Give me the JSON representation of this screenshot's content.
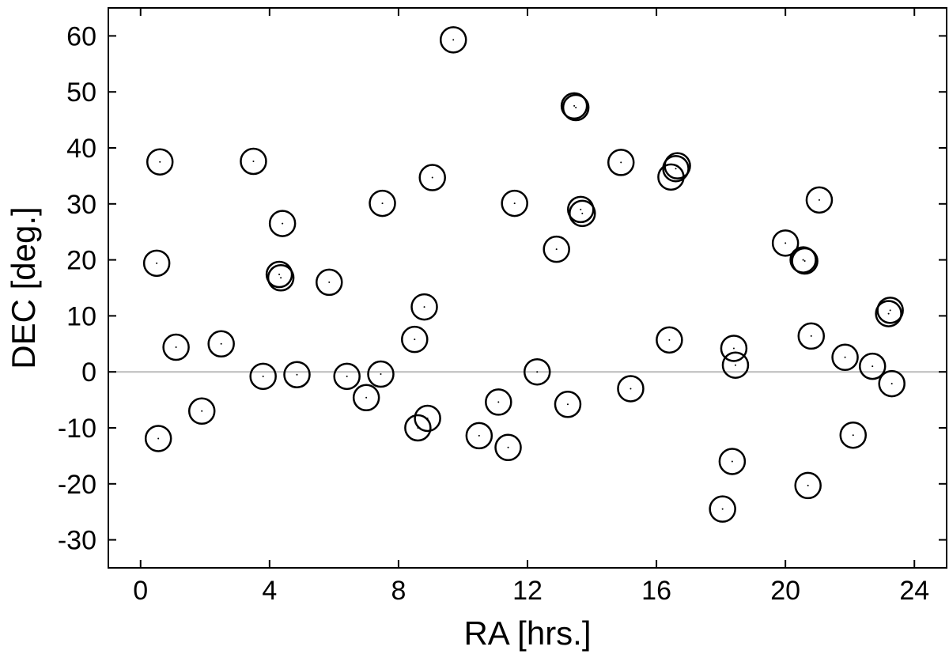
{
  "chart_data": {
    "type": "scatter",
    "xlabel": "RA [hrs.]",
    "ylabel": "DEC [deg.]",
    "xlim": [
      -1,
      25
    ],
    "ylim": [
      -35,
      65
    ],
    "xticks": [
      0,
      4,
      8,
      12,
      16,
      20,
      24
    ],
    "yticks": [
      -30,
      -20,
      -10,
      0,
      10,
      20,
      30,
      40,
      50,
      60
    ],
    "xtick_labels": [
      "0",
      "4",
      "8",
      "12",
      "16",
      "20",
      "24"
    ],
    "ytick_labels": [
      "-30",
      "-20",
      "-10",
      "0",
      "10",
      "20",
      "30",
      "40",
      "50",
      "60"
    ],
    "grid": false,
    "reference_line_y": 0,
    "colors": {
      "marker": "#000000",
      "reference_line": "#bbbbbb"
    },
    "points": [
      {
        "x": 0.5,
        "y": 19.4
      },
      {
        "x": 0.55,
        "y": -11.9
      },
      {
        "x": 0.6,
        "y": 37.5
      },
      {
        "x": 1.1,
        "y": 4.4
      },
      {
        "x": 1.9,
        "y": -7.0
      },
      {
        "x": 2.5,
        "y": 5.0
      },
      {
        "x": 3.5,
        "y": 37.6
      },
      {
        "x": 3.8,
        "y": -0.8
      },
      {
        "x": 4.3,
        "y": 17.4
      },
      {
        "x": 4.35,
        "y": 16.8
      },
      {
        "x": 4.4,
        "y": 26.5
      },
      {
        "x": 4.85,
        "y": -0.5
      },
      {
        "x": 5.85,
        "y": 16.0
      },
      {
        "x": 6.4,
        "y": -0.8
      },
      {
        "x": 7.0,
        "y": -4.6
      },
      {
        "x": 7.45,
        "y": -0.4
      },
      {
        "x": 7.5,
        "y": 30.1
      },
      {
        "x": 8.5,
        "y": 5.8
      },
      {
        "x": 8.6,
        "y": -10.0
      },
      {
        "x": 8.8,
        "y": 11.6
      },
      {
        "x": 8.9,
        "y": -8.3
      },
      {
        "x": 9.05,
        "y": 34.7
      },
      {
        "x": 9.7,
        "y": 59.3
      },
      {
        "x": 10.5,
        "y": -11.4
      },
      {
        "x": 11.1,
        "y": -5.4
      },
      {
        "x": 11.4,
        "y": -13.5
      },
      {
        "x": 11.6,
        "y": 30.1
      },
      {
        "x": 12.3,
        "y": 0.0
      },
      {
        "x": 12.9,
        "y": 21.9
      },
      {
        "x": 13.25,
        "y": -5.8
      },
      {
        "x": 13.45,
        "y": 47.5
      },
      {
        "x": 13.5,
        "y": 47.2
      },
      {
        "x": 13.65,
        "y": 29.0
      },
      {
        "x": 13.7,
        "y": 28.3
      },
      {
        "x": 14.9,
        "y": 37.4
      },
      {
        "x": 15.2,
        "y": -3.0
      },
      {
        "x": 16.4,
        "y": 5.7
      },
      {
        "x": 16.45,
        "y": 34.8
      },
      {
        "x": 16.6,
        "y": 36.3
      },
      {
        "x": 16.65,
        "y": 36.8
      },
      {
        "x": 18.05,
        "y": -24.5
      },
      {
        "x": 18.35,
        "y": -16.0
      },
      {
        "x": 18.4,
        "y": 4.2
      },
      {
        "x": 18.45,
        "y": 1.2
      },
      {
        "x": 20.0,
        "y": 23.0
      },
      {
        "x": 20.55,
        "y": 20.0
      },
      {
        "x": 20.6,
        "y": 19.8
      },
      {
        "x": 20.7,
        "y": -20.3
      },
      {
        "x": 20.8,
        "y": 6.4
      },
      {
        "x": 21.05,
        "y": 30.7
      },
      {
        "x": 21.85,
        "y": 2.6
      },
      {
        "x": 22.1,
        "y": -11.3
      },
      {
        "x": 22.7,
        "y": 1.0
      },
      {
        "x": 23.2,
        "y": 10.4
      },
      {
        "x": 23.25,
        "y": 11.0
      },
      {
        "x": 23.3,
        "y": -2.1
      }
    ]
  }
}
